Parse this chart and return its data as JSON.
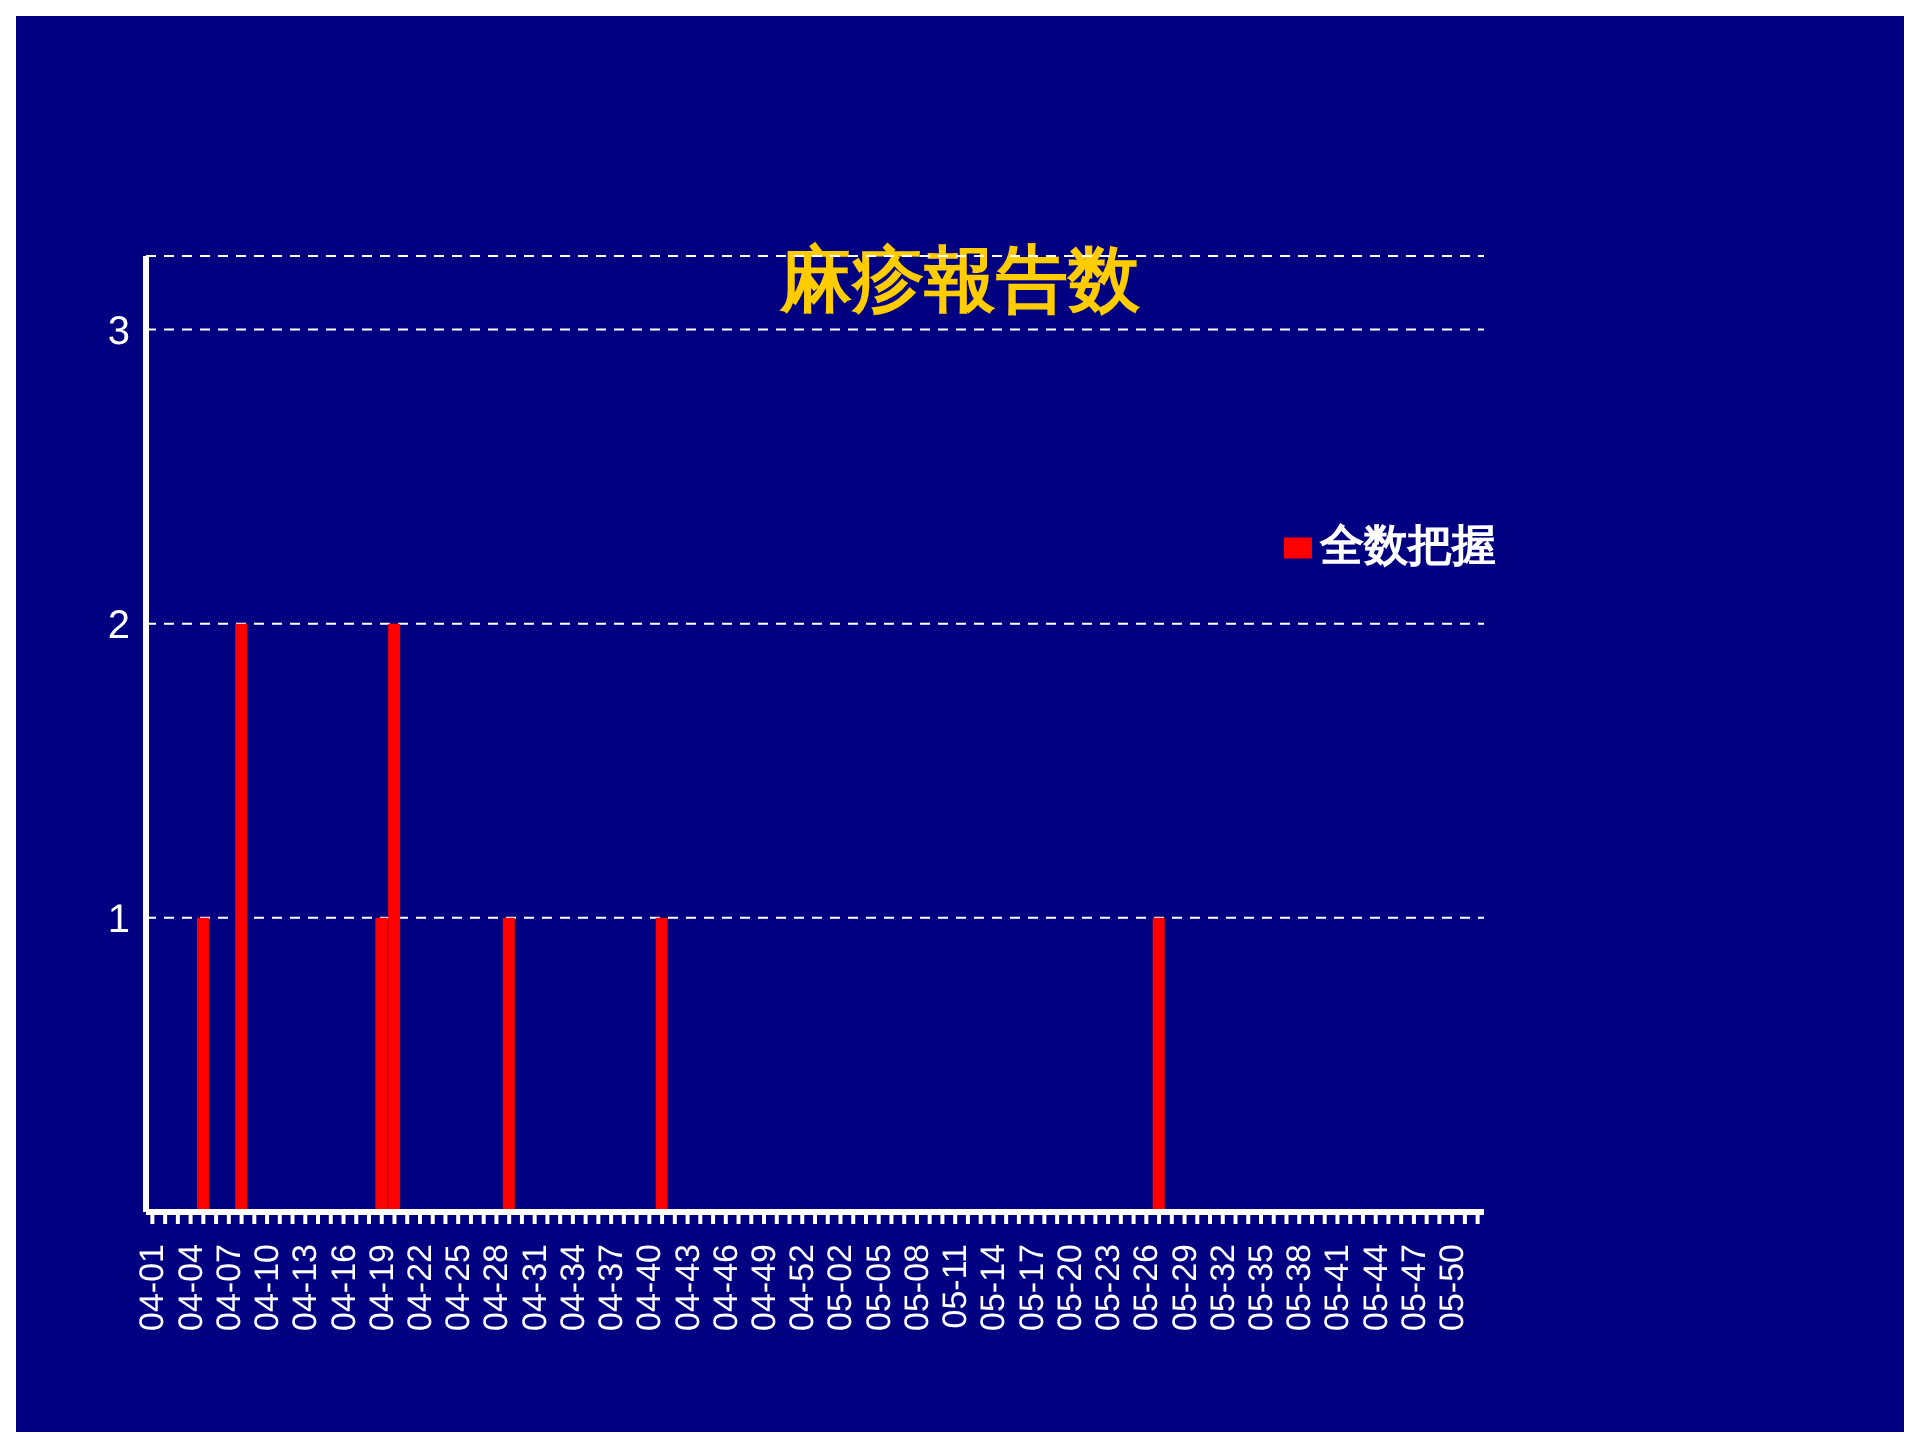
{
  "chart_data": {
    "type": "bar",
    "title": "麻疹報告数",
    "categories": [
      "04-01",
      null,
      null,
      "04-04",
      null,
      null,
      "04-07",
      null,
      null,
      "04-10",
      null,
      null,
      "04-13",
      null,
      null,
      "04-16",
      null,
      null,
      "04-19",
      null,
      null,
      "04-22",
      null,
      null,
      "04-25",
      null,
      null,
      "04-28",
      null,
      null,
      "04-31",
      null,
      null,
      "04-34",
      null,
      null,
      "04-37",
      null,
      null,
      "04-40",
      null,
      null,
      "04-43",
      null,
      null,
      "04-46",
      null,
      null,
      "04-49",
      null,
      null,
      "04-52",
      null,
      null,
      "05-02",
      null,
      null,
      "05-05",
      null,
      null,
      "05-08",
      null,
      null,
      "05-11",
      null,
      null,
      "05-14",
      null,
      null,
      "05-17",
      null,
      null,
      "05-20",
      null,
      null,
      "05-23",
      null,
      null,
      "05-26",
      null,
      null,
      "05-29",
      null,
      null,
      "05-32",
      null,
      null,
      "05-35",
      null,
      null,
      "05-38",
      null,
      null,
      "05-41",
      null,
      null,
      "05-44",
      null,
      null,
      "05-47",
      null,
      null,
      "05-50",
      null,
      null
    ],
    "series": [
      {
        "name": "全数把握",
        "color": "#ff0000",
        "values": [
          0,
          0,
          0,
          0,
          1,
          0,
          0,
          2,
          0,
          0,
          0,
          0,
          0,
          0,
          0,
          0,
          0,
          0,
          1,
          2,
          0,
          0,
          0,
          0,
          0,
          0,
          0,
          0,
          1,
          0,
          0,
          0,
          0,
          0,
          0,
          0,
          0,
          0,
          0,
          0,
          1,
          0,
          0,
          0,
          0,
          0,
          0,
          0,
          0,
          0,
          0,
          0,
          0,
          0,
          0,
          0,
          0,
          0,
          0,
          0,
          0,
          0,
          0,
          0,
          0,
          0,
          0,
          0,
          0,
          0,
          0,
          0,
          0,
          0,
          0,
          0,
          0,
          0,
          0,
          1,
          0,
          0,
          0,
          0,
          0,
          0,
          0,
          0,
          0,
          0,
          0,
          0,
          0,
          0,
          0,
          0,
          0,
          0,
          0,
          0,
          0,
          0,
          0,
          0,
          0
        ]
      }
    ],
    "ylim": [
      0,
      3.25
    ],
    "yticks": [
      1,
      2,
      3
    ],
    "grid": "y",
    "legend": "top right"
  }
}
